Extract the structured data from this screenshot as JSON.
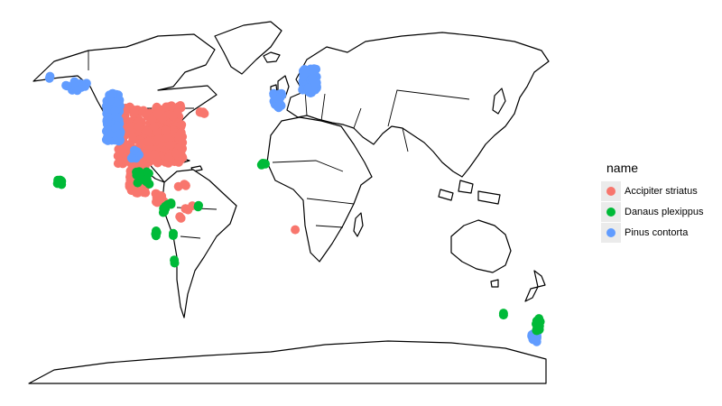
{
  "legend": {
    "title": "name",
    "items": [
      {
        "label": "Accipiter striatus",
        "color": "#F8766D"
      },
      {
        "label": "Danaus plexippus",
        "color": "#00BA38"
      },
      {
        "label": "Pinus contorta",
        "color": "#619CFF"
      }
    ]
  },
  "occurrences": [
    {
      "series": 0,
      "lon": -95,
      "lat": 40,
      "spread": [
        22,
        12
      ],
      "count": 260
    },
    {
      "series": 0,
      "lon": -78,
      "lat": 37,
      "spread": [
        6,
        7
      ],
      "count": 70
    },
    {
      "series": 0,
      "lon": -103,
      "lat": 22,
      "spread": [
        6,
        6
      ],
      "count": 70
    },
    {
      "series": 0,
      "lon": -88,
      "lat": 14,
      "spread": [
        3,
        2
      ],
      "count": 14
    },
    {
      "series": 0,
      "lon": -68,
      "lat": 10,
      "spread": [
        3,
        2
      ],
      "count": 4
    },
    {
      "series": 0,
      "lon": -72,
      "lat": 19,
      "spread": [
        3,
        1
      ],
      "count": 4
    },
    {
      "series": 0,
      "lon": -75,
      "lat": 5,
      "spread": [
        2,
        2
      ],
      "count": 2
    },
    {
      "series": 0,
      "lon": 6,
      "lat": 1,
      "spread": [
        0,
        0
      ],
      "count": 1
    },
    {
      "series": 0,
      "lon": -57,
      "lat": 49,
      "spread": [
        3,
        2
      ],
      "count": 5
    },
    {
      "series": 2,
      "lon": -120,
      "lat": 47,
      "spread": [
        5,
        10
      ],
      "count": 90
    },
    {
      "series": 2,
      "lon": -145,
      "lat": 60,
      "spread": [
        8,
        2
      ],
      "count": 10
    },
    {
      "series": 2,
      "lon": -165,
      "lat": 63,
      "spread": [
        1,
        1
      ],
      "count": 2
    },
    {
      "series": 2,
      "lon": -105,
      "lat": 30,
      "spread": [
        3,
        4
      ],
      "count": 8
    },
    {
      "series": 2,
      "lon": 16,
      "lat": 62,
      "spread": [
        5,
        5
      ],
      "count": 90
    },
    {
      "series": 2,
      "lon": -6,
      "lat": 54,
      "spread": [
        3,
        3
      ],
      "count": 22
    },
    {
      "series": 2,
      "lon": 172,
      "lat": -43,
      "spread": [
        2,
        2
      ],
      "count": 12
    },
    {
      "series": 1,
      "lon": -157,
      "lat": 20.5,
      "spread": [
        2,
        1
      ],
      "count": 10
    },
    {
      "series": 1,
      "lon": -100,
      "lat": 22,
      "spread": [
        5,
        3
      ],
      "count": 14
    },
    {
      "series": 1,
      "lon": -83,
      "lat": 10,
      "spread": [
        3,
        2
      ],
      "count": 10
    },
    {
      "series": 1,
      "lon": -62,
      "lat": 11,
      "spread": [
        1,
        1
      ],
      "count": 2
    },
    {
      "series": 1,
      "lon": -90,
      "lat": -0.5,
      "spread": [
        1,
        1
      ],
      "count": 4
    },
    {
      "series": 1,
      "lon": -79,
      "lat": -1,
      "spread": [
        1,
        1
      ],
      "count": 2
    },
    {
      "series": 1,
      "lon": -77,
      "lat": -12,
      "spread": [
        1,
        1
      ],
      "count": 2
    },
    {
      "series": 1,
      "lon": -16,
      "lat": 28,
      "spread": [
        2,
        0.5
      ],
      "count": 5
    },
    {
      "series": 1,
      "lon": 151,
      "lat": -33.5,
      "spread": [
        1,
        1
      ],
      "count": 2
    },
    {
      "series": 1,
      "lon": 175,
      "lat": -38,
      "spread": [
        2,
        3
      ],
      "count": 12
    }
  ]
}
